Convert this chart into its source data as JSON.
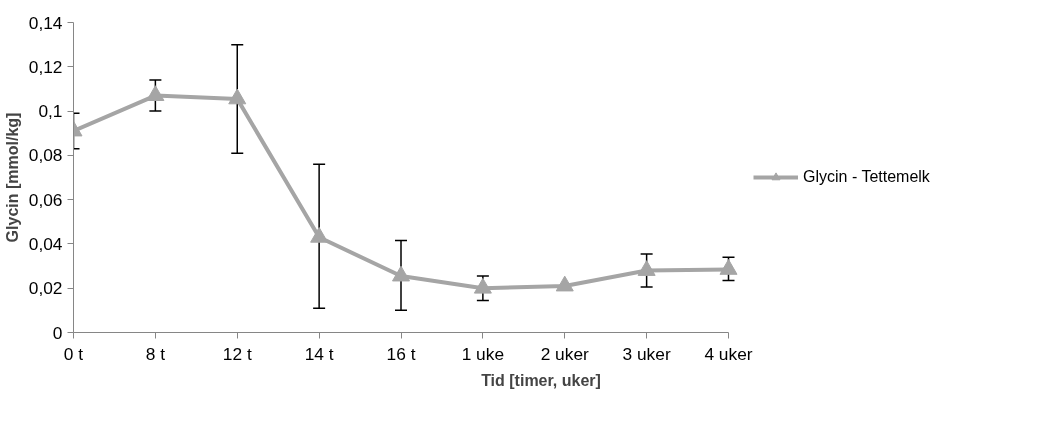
{
  "chart_data": {
    "type": "line",
    "xlabel": "Tid [timer, uker]",
    "ylabel": "Glycin [mmol/kg]",
    "categories": [
      "0 t",
      "8 t",
      "12 t",
      "14 t",
      "16 t",
      "1 uke",
      "2 uker",
      "3 uker",
      "4 uker"
    ],
    "ylim": [
      0,
      0.14
    ],
    "yticks": [
      {
        "value": 0,
        "label": "0"
      },
      {
        "value": 0.02,
        "label": "0,02"
      },
      {
        "value": 0.04,
        "label": "0,04"
      },
      {
        "value": 0.06,
        "label": "0,06"
      },
      {
        "value": 0.08,
        "label": "0,08"
      },
      {
        "value": 0.1,
        "label": "0,1"
      },
      {
        "value": 0.12,
        "label": "0,12"
      },
      {
        "value": 0.14,
        "label": "0,14"
      }
    ],
    "series": [
      {
        "name": "Glycin - Tettemelk",
        "color": "#a5a5a5",
        "values": [
          0.091,
          0.107,
          0.1055,
          0.043,
          0.0255,
          0.02,
          0.021,
          0.028,
          0.0285
        ],
        "errors": [
          [
            0.083,
            0.099
          ],
          [
            0.1,
            0.114
          ],
          [
            0.081,
            0.13
          ],
          [
            0.011,
            0.076
          ],
          [
            0.01,
            0.0415
          ],
          [
            0.0145,
            0.0255
          ],
          null,
          [
            0.0205,
            0.0355
          ],
          [
            0.0235,
            0.034
          ]
        ]
      }
    ],
    "marker": "triangle",
    "line_style": "solid",
    "grid": false,
    "legend": "right"
  }
}
